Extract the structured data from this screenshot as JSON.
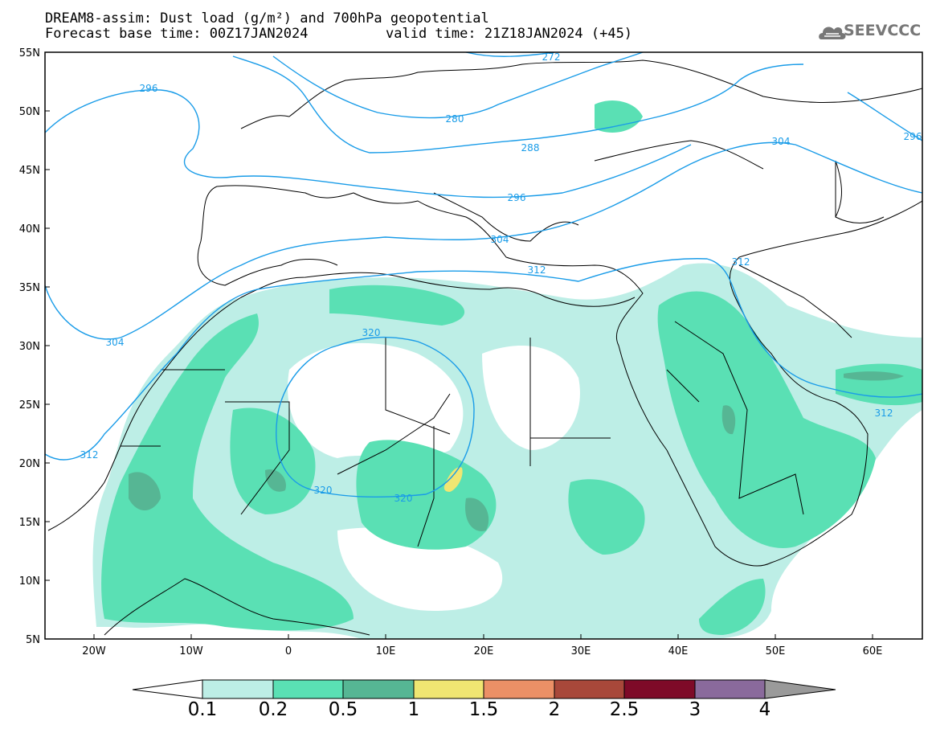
{
  "title": {
    "line1": "DREAM8-assim: Dust load (g/m²) and 700hPa geopotential",
    "line2": "Forecast base time: 00Z17JAN2024",
    "valid": "valid time: 21Z18JAN2024 (+45)"
  },
  "logo": {
    "text": "SEEVCCC",
    "icon": "cloud-logo-icon"
  },
  "axes": {
    "lat_labels": [
      "55N",
      "50N",
      "45N",
      "40N",
      "35N",
      "30N",
      "25N",
      "20N",
      "15N",
      "10N",
      "5N"
    ],
    "lon_labels": [
      "20W",
      "10W",
      "0",
      "10E",
      "20E",
      "30E",
      "40E",
      "50E",
      "60E"
    ],
    "lat_range": [
      5,
      55
    ],
    "lon_range": [
      -25,
      65
    ]
  },
  "contours": {
    "labels": [
      "272",
      "280",
      "288",
      "296",
      "296",
      "304",
      "304",
      "304",
      "312",
      "312",
      "312",
      "312",
      "320",
      "320",
      "320",
      "296"
    ],
    "color": "#1a9ce8"
  },
  "colorbar": {
    "labels": [
      "0.1",
      "0.2",
      "0.5",
      "1",
      "1.5",
      "2",
      "2.5",
      "3",
      "4"
    ],
    "colors": [
      "#bdeee6",
      "#5ae0b4",
      "#56b694",
      "#f0e672",
      "#eb9066",
      "#a8483a",
      "#7e0a28",
      "#8a6a9c"
    ],
    "extend_low": "#ffffff",
    "extend_high": "#9a9a9a"
  }
}
